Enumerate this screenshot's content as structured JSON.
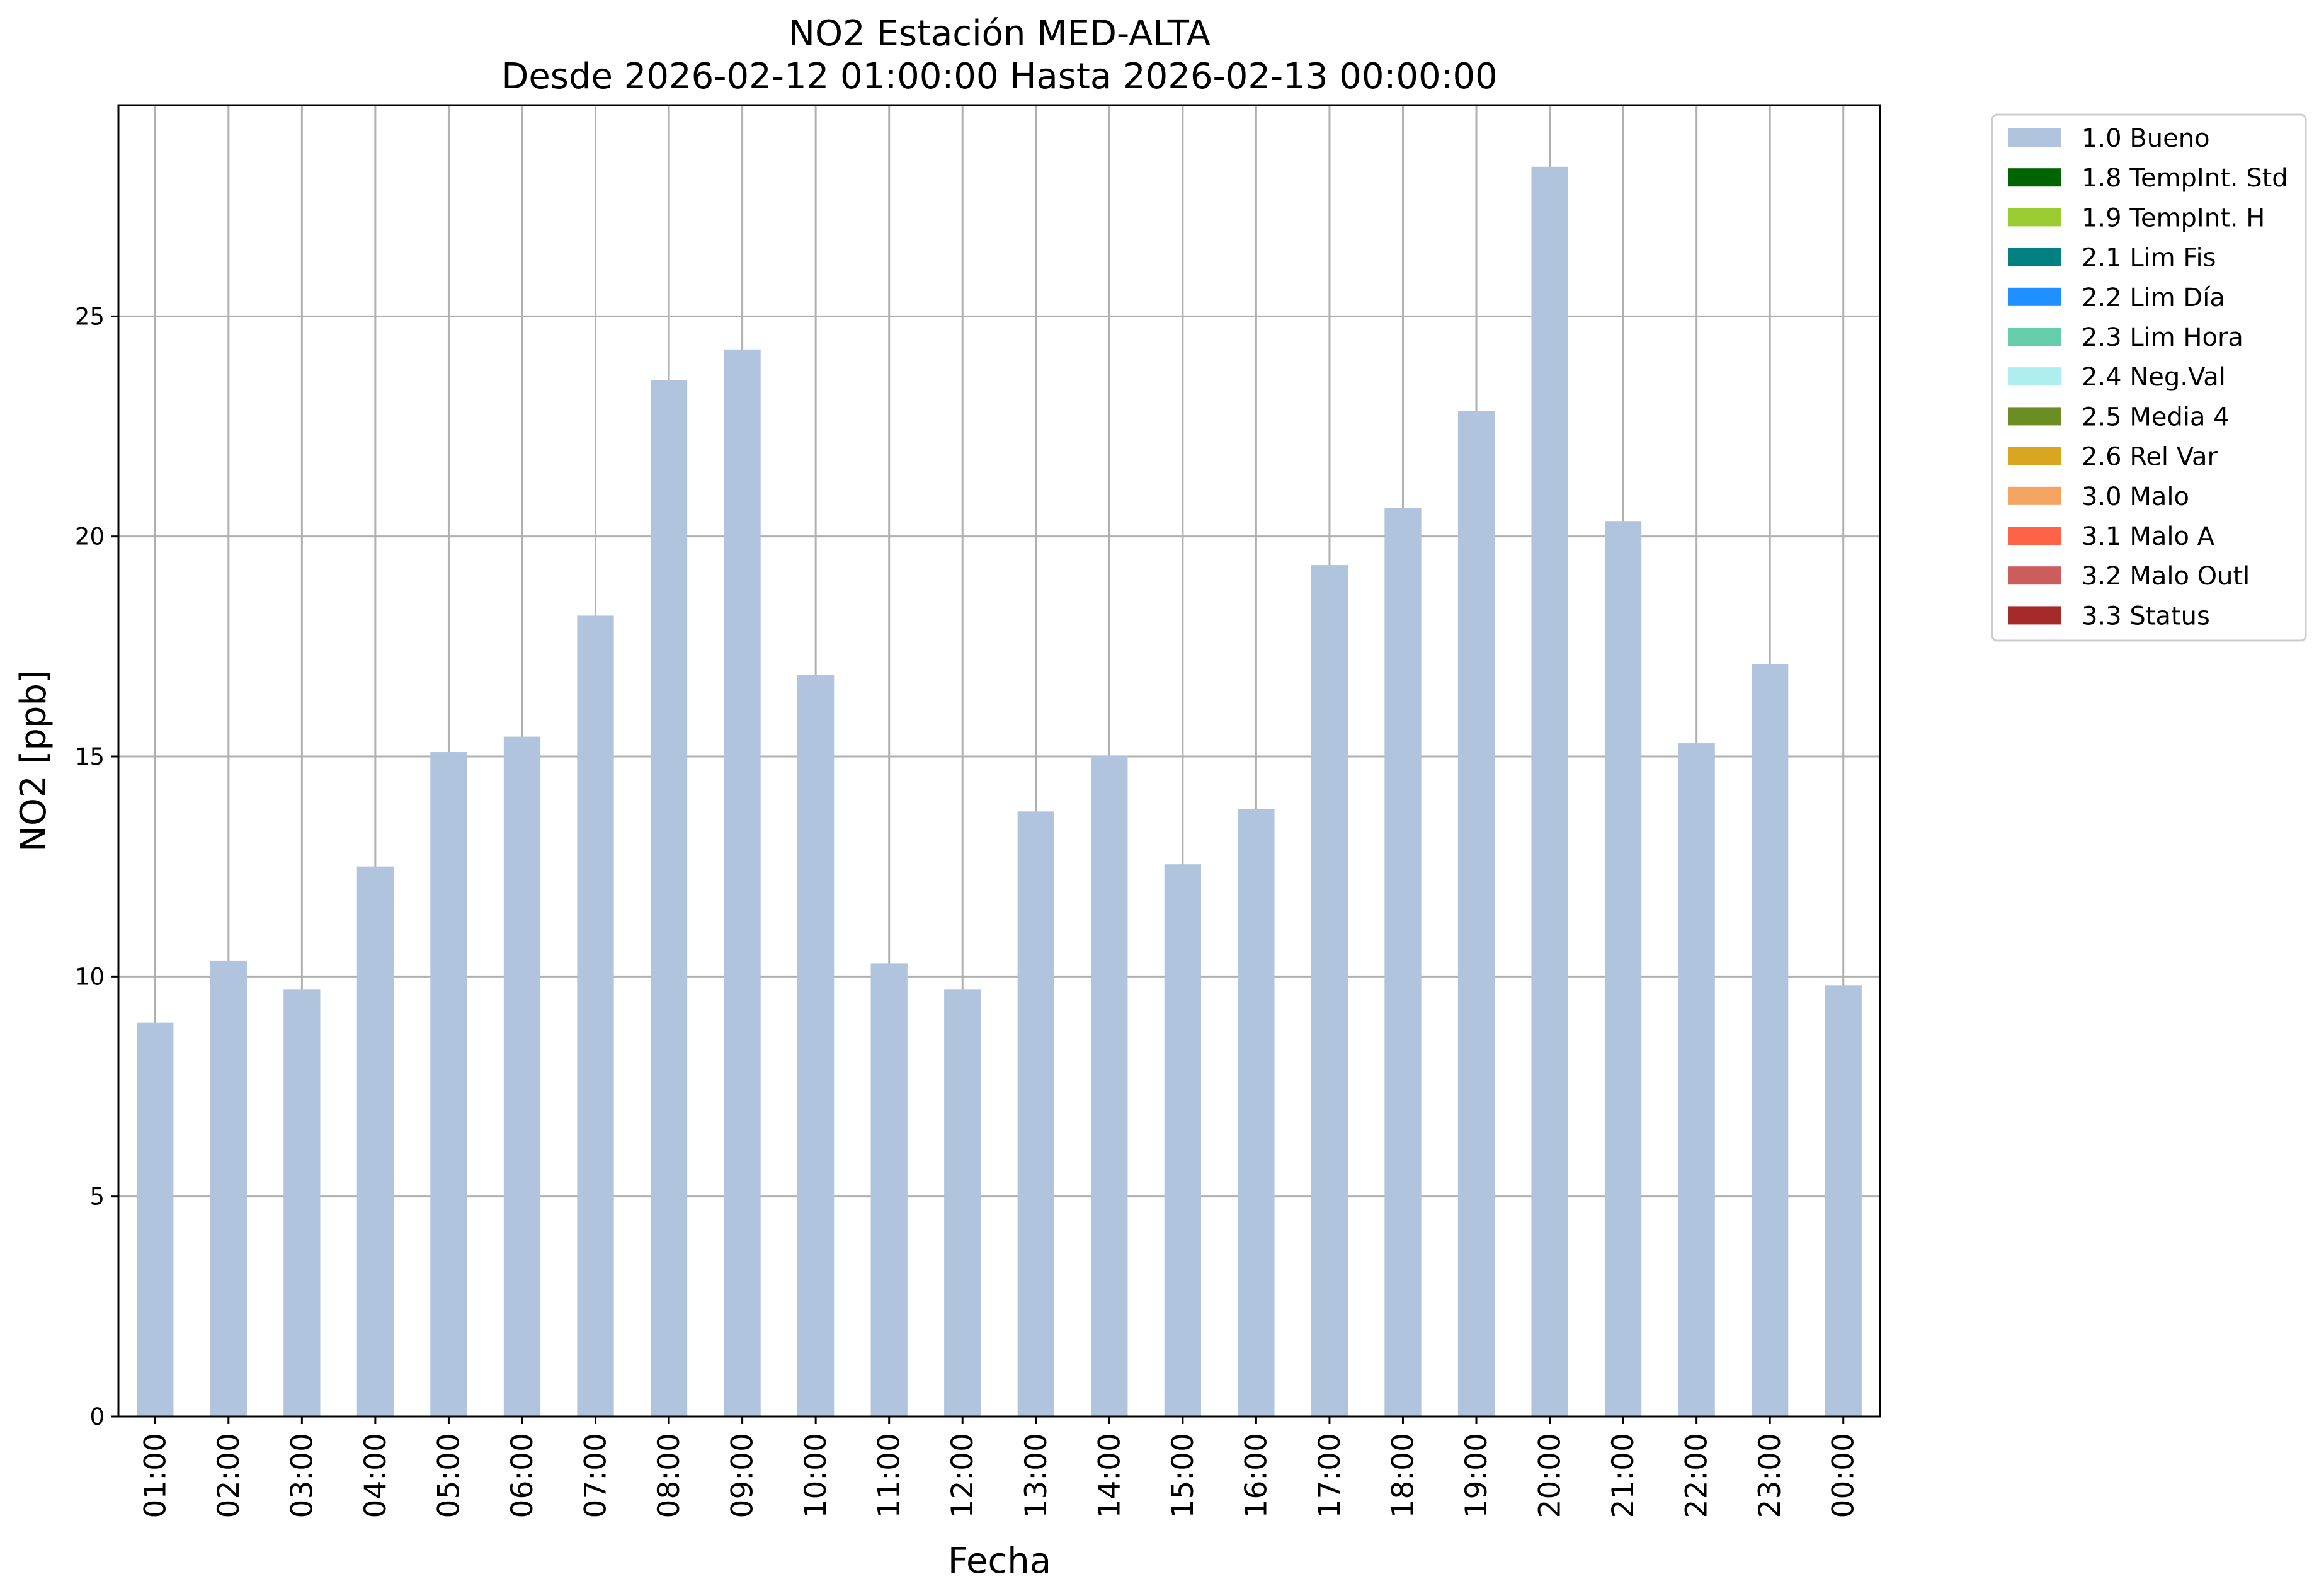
{
  "chart_data": {
    "type": "bar",
    "title": "NO2 Estación MED-ALTA",
    "subtitle": "Desde 2026-02-12 01:00:00 Hasta 2026-02-13 00:00:00",
    "xlabel": "Fecha",
    "ylabel": "NO2 [ppb]",
    "ylim": [
      0,
      29.8
    ],
    "yticks": [
      "0",
      "5",
      "10",
      "15",
      "20",
      "25"
    ],
    "grid": true,
    "legend_position": "outside-right",
    "categories": [
      "01:00",
      "02:00",
      "03:00",
      "04:00",
      "05:00",
      "06:00",
      "07:00",
      "08:00",
      "09:00",
      "10:00",
      "11:00",
      "12:00",
      "13:00",
      "14:00",
      "15:00",
      "16:00",
      "17:00",
      "18:00",
      "19:00",
      "20:00",
      "21:00",
      "22:00",
      "23:00",
      "00:00"
    ],
    "series": [
      {
        "name": "1.0 Bueno",
        "color": "#b0c4de",
        "values": [
          8.95,
          10.35,
          9.7,
          12.5,
          15.1,
          15.45,
          18.2,
          23.55,
          24.25,
          16.85,
          10.3,
          9.7,
          13.75,
          15.0,
          12.55,
          13.8,
          19.35,
          20.65,
          22.85,
          28.4,
          20.35,
          15.3,
          17.1,
          9.8
        ]
      }
    ],
    "legend": [
      {
        "label": "1.0 Bueno",
        "color": "#b0c4de"
      },
      {
        "label": "1.8 TempInt. Std",
        "color": "#006400"
      },
      {
        "label": "1.9 TempInt. H",
        "color": "#9acd32"
      },
      {
        "label": "2.1 Lim Fis",
        "color": "#008080"
      },
      {
        "label": "2.2 Lim Día",
        "color": "#1e90ff"
      },
      {
        "label": "2.3 Lim Hora",
        "color": "#66cdaa"
      },
      {
        "label": "2.4 Neg.Val",
        "color": "#afeeee"
      },
      {
        "label": "2.5 Media 4",
        "color": "#6b8e23"
      },
      {
        "label": "2.6 Rel Var",
        "color": "#daa520"
      },
      {
        "label": "3.0 Malo",
        "color": "#f4a460"
      },
      {
        "label": "3.1 Malo A",
        "color": "#ff6347"
      },
      {
        "label": "3.2 Malo Outl",
        "color": "#cd5c5c"
      },
      {
        "label": "3.3 Status",
        "color": "#a52a2a"
      }
    ]
  }
}
